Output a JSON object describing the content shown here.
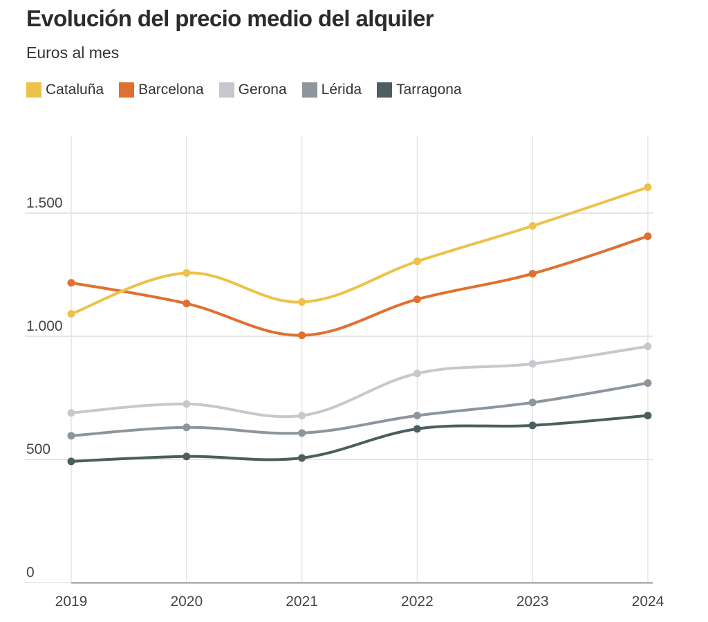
{
  "header": {
    "title": "Evolución del precio medio del alquiler",
    "subtitle": "Euros al mes"
  },
  "legend": [
    {
      "label": "Cataluña",
      "color": "#ECC24A"
    },
    {
      "label": "Barcelona",
      "color": "#E07030"
    },
    {
      "label": "Gerona",
      "color": "#C6C8CD"
    },
    {
      "label": "Lérida",
      "color": "#8D959D"
    },
    {
      "label": "Tarragona",
      "color": "#4C5E5E"
    }
  ],
  "chart_data": {
    "type": "line",
    "title": "Evolución del precio medio del alquiler",
    "subtitle": "Euros al mes",
    "xlabel": "",
    "ylabel": "",
    "x": [
      "2019",
      "2020",
      "2021",
      "2022",
      "2023",
      "2024"
    ],
    "ylim": [
      0,
      1800
    ],
    "yticks": [
      0,
      500,
      1000,
      1500
    ],
    "ytick_labels": [
      "0",
      "500",
      "1.000",
      "1.500"
    ],
    "grid": true,
    "legend_position": "top-left",
    "curve": "smooth",
    "markers": true,
    "series": [
      {
        "name": "Cataluña",
        "color": "#ECC24A",
        "values": [
          1091,
          1257,
          1139,
          1304,
          1448,
          1605
        ]
      },
      {
        "name": "Barcelona",
        "color": "#E07030",
        "values": [
          1217,
          1133,
          1004,
          1150,
          1254,
          1406
        ]
      },
      {
        "name": "Gerona",
        "color": "#C6C8CD",
        "values": [
          689,
          725,
          678,
          849,
          888,
          959
        ]
      },
      {
        "name": "Lérida",
        "color": "#8D959D",
        "values": [
          596,
          630,
          607,
          678,
          731,
          810
        ]
      },
      {
        "name": "Tarragona",
        "color": "#4C5E5E",
        "values": [
          492,
          512,
          506,
          624,
          638,
          678
        ]
      }
    ]
  }
}
